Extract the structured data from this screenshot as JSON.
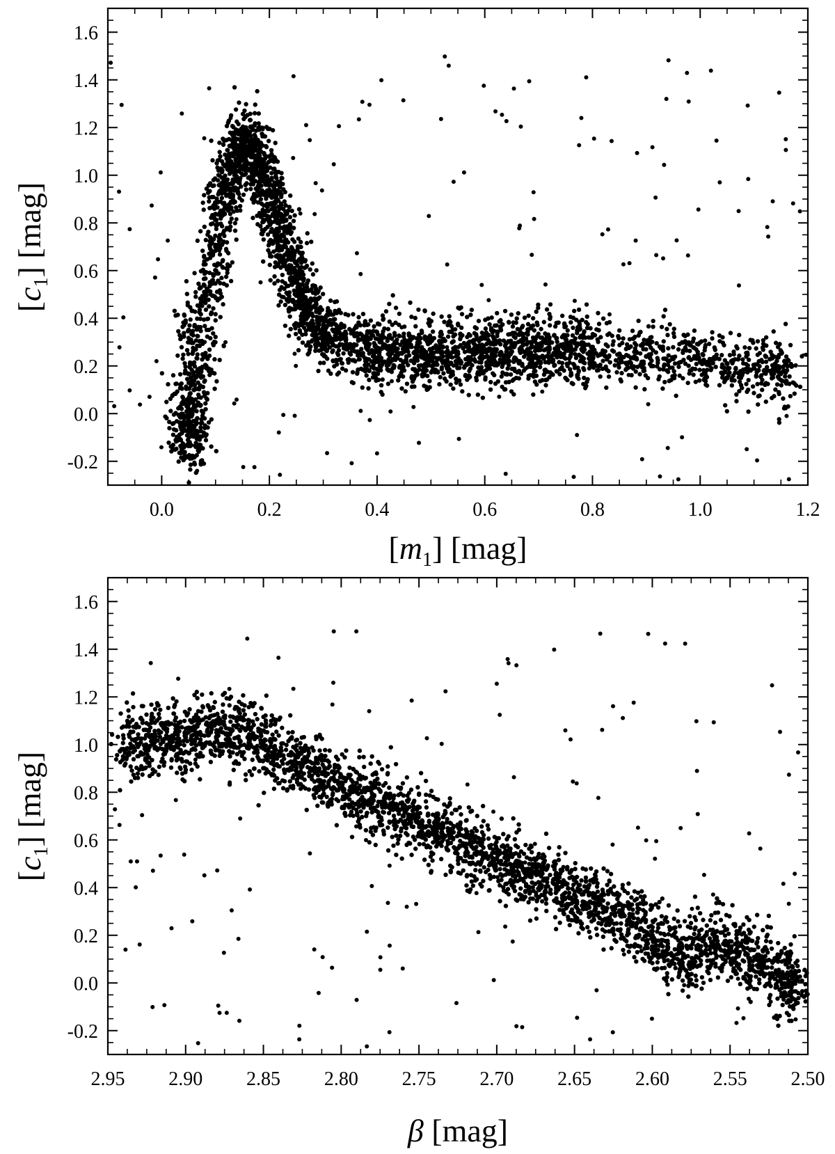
{
  "figure": {
    "panels": [
      {
        "xlabel_parts": {
          "bracket_open": "[",
          "var": "m",
          "sub": "1",
          "bracket_close": "]",
          "unit": " [mag]"
        },
        "ylabel_parts": {
          "bracket_open": "[",
          "var": "c",
          "sub": "1",
          "bracket_close": "]",
          "unit": " [mag]"
        }
      },
      {
        "xlabel_parts": {
          "var": "β",
          "unit": " [mag]"
        },
        "ylabel_parts": {
          "bracket_open": "[",
          "var": "c",
          "sub": "1",
          "bracket_close": "]",
          "unit": " [mag]"
        }
      }
    ]
  },
  "chart_data": [
    {
      "type": "scatter",
      "title": "",
      "xlabel": "[m1] [mag]",
      "ylabel": "[c1] [mag]",
      "xlim": [
        -0.1,
        1.2
      ],
      "ylim": [
        -0.3,
        1.7
      ],
      "x_inverted": false,
      "xticks": [
        0.0,
        0.2,
        0.4,
        0.6,
        0.8,
        1.0,
        1.2
      ],
      "xtick_labels": [
        "0.0",
        "0.2",
        "0.4",
        "0.6",
        "0.8",
        "1.0",
        "1.2"
      ],
      "yticks": [
        -0.2,
        0.0,
        0.2,
        0.4,
        0.6,
        0.8,
        1.0,
        1.2,
        1.4,
        1.6
      ],
      "ytick_labels": [
        "-0.2",
        "0.0",
        "0.2",
        "0.4",
        "0.6",
        "0.8",
        "1.0",
        "1.2",
        "1.4",
        "1.6"
      ],
      "grid": false,
      "marker_color": "#000000",
      "series": [
        {
          "x": [
            0.03,
            0.05,
            0.07,
            0.04,
            0.06,
            0.08,
            0.05,
            0.09,
            0.1,
            0.11,
            0.12,
            0.13,
            0.14,
            0.15,
            0.16,
            0.17,
            0.18,
            0.19,
            0.2,
            0.21,
            0.22,
            0.23,
            0.24,
            0.25,
            0.26,
            0.27,
            0.28,
            0.3,
            0.32,
            0.35,
            0.38,
            0.4,
            0.42,
            0.45,
            0.48,
            0.5,
            0.52,
            0.55,
            0.58,
            0.6,
            0.62,
            0.65,
            0.68,
            0.7,
            0.72,
            0.75,
            0.78,
            0.8,
            0.85,
            0.9,
            0.95,
            1.0,
            1.05,
            1.1,
            1.15
          ],
          "y": [
            -0.1,
            -0.05,
            -0.15,
            0.05,
            0.1,
            0.25,
            0.35,
            0.55,
            0.7,
            0.85,
            0.95,
            1.05,
            1.1,
            1.15,
            1.12,
            1.08,
            1.05,
            0.98,
            0.92,
            0.85,
            0.78,
            0.7,
            0.62,
            0.55,
            0.48,
            0.42,
            0.38,
            0.33,
            0.31,
            0.29,
            0.28,
            0.27,
            0.27,
            0.26,
            0.26,
            0.25,
            0.25,
            0.25,
            0.25,
            0.26,
            0.26,
            0.26,
            0.27,
            0.27,
            0.27,
            0.27,
            0.27,
            0.26,
            0.25,
            0.24,
            0.23,
            0.22,
            0.21,
            0.19,
            0.17
          ]
        }
      ]
    },
    {
      "type": "scatter",
      "title": "",
      "xlabel": "β [mag]",
      "ylabel": "[c1] [mag]",
      "xlim": [
        2.95,
        2.5
      ],
      "ylim": [
        -0.3,
        1.7
      ],
      "x_inverted": true,
      "xticks": [
        2.95,
        2.9,
        2.85,
        2.8,
        2.75,
        2.7,
        2.65,
        2.6,
        2.55,
        2.5
      ],
      "xtick_labels": [
        "2.95",
        "2.90",
        "2.85",
        "2.80",
        "2.75",
        "2.70",
        "2.65",
        "2.60",
        "2.55",
        "2.50"
      ],
      "yticks": [
        -0.2,
        0.0,
        0.2,
        0.4,
        0.6,
        0.8,
        1.0,
        1.2,
        1.4,
        1.6
      ],
      "ytick_labels": [
        "-0.2",
        "0.0",
        "0.2",
        "0.4",
        "0.6",
        "0.8",
        "1.0",
        "1.2",
        "1.4",
        "1.6"
      ],
      "grid": false,
      "marker_color": "#000000",
      "series": [
        {
          "x": [
            2.94,
            2.93,
            2.92,
            2.91,
            2.9,
            2.89,
            2.88,
            2.87,
            2.86,
            2.85,
            2.84,
            2.83,
            2.82,
            2.81,
            2.8,
            2.79,
            2.78,
            2.77,
            2.76,
            2.75,
            2.74,
            2.73,
            2.72,
            2.71,
            2.7,
            2.69,
            2.68,
            2.67,
            2.66,
            2.65,
            2.64,
            2.63,
            2.62,
            2.61,
            2.6,
            2.59,
            2.58,
            2.57,
            2.56,
            2.55,
            2.54,
            2.53,
            2.52,
            2.51
          ],
          "y": [
            0.98,
            1.0,
            1.01,
            1.02,
            1.03,
            1.04,
            1.05,
            1.06,
            1.03,
            0.99,
            0.96,
            0.93,
            0.9,
            0.87,
            0.84,
            0.8,
            0.77,
            0.74,
            0.7,
            0.67,
            0.64,
            0.61,
            0.58,
            0.55,
            0.52,
            0.49,
            0.46,
            0.43,
            0.4,
            0.37,
            0.34,
            0.31,
            0.28,
            0.25,
            0.2,
            0.15,
            0.12,
            0.14,
            0.16,
            0.15,
            0.12,
            0.08,
            0.04,
            0.0
          ]
        }
      ]
    }
  ]
}
